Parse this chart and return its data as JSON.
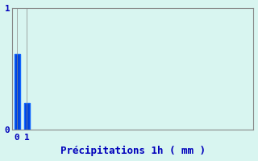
{
  "categories": [
    0,
    1
  ],
  "values": [
    0.62,
    0.22
  ],
  "bar_color": "#0044dd",
  "bar_edge_color": "#1166ff",
  "background_color": "#d8f5f0",
  "plot_bg_color": "#d8f5f0",
  "xlabel": "Précipitations 1h ( mm )",
  "xlabel_color": "#0000bb",
  "xlabel_fontsize": 9,
  "ylim": [
    0,
    1.0
  ],
  "yticks": [
    0,
    1
  ],
  "xticks": [
    0,
    1
  ],
  "xlim": [
    -0.5,
    24
  ],
  "grid_color": "#888888",
  "axis_color": "#888888",
  "tick_color": "#0000bb",
  "tick_fontsize": 8,
  "bar_width": 0.6
}
